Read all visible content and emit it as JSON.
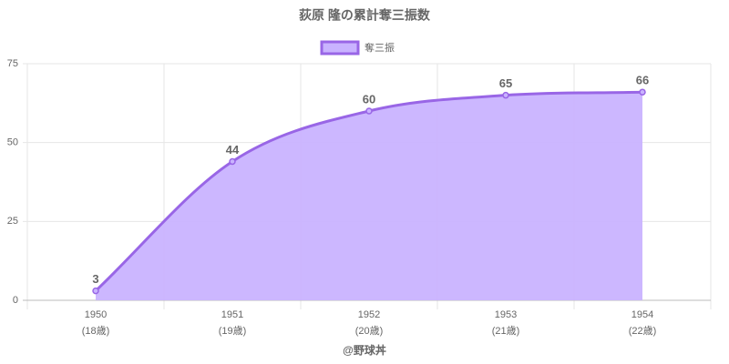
{
  "chart_data": {
    "type": "area",
    "title": "荻原 隆の累計奪三振数",
    "categories": [
      "1950",
      "1951",
      "1952",
      "1953",
      "1954"
    ],
    "category_sublabels": [
      "(18歳)",
      "(19歳)",
      "(20歳)",
      "(21歳)",
      "(22歳)"
    ],
    "series": [
      {
        "name": "奪三振",
        "color": "#9966e6",
        "fill": "#c9b3ff",
        "values": [
          3,
          44,
          60,
          65,
          66
        ]
      }
    ],
    "ylim": [
      0,
      75
    ],
    "yticks": [
      0,
      25,
      50,
      75
    ],
    "grid": true,
    "legend": "top",
    "footer": "@野球丼"
  }
}
